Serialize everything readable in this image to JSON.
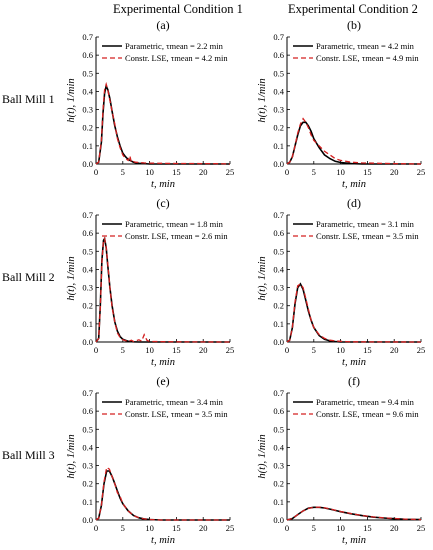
{
  "columns": [
    "Experimental Condition 1",
    "Experimental Condition 2"
  ],
  "rows": [
    "Ball Mill 1",
    "Ball Mill 2",
    "Ball Mill 3"
  ],
  "colors": {
    "parametric": "#000000",
    "lse": "#d32020",
    "axis": "#000000"
  },
  "axes": {
    "xlabel": "t, min",
    "ylabel": "h(t), 1/min",
    "xlim": [
      0,
      25
    ],
    "ylim": [
      0,
      0.7
    ],
    "xticks": [
      0,
      5,
      10,
      15,
      20,
      25
    ],
    "yticks": [
      0.0,
      0.1,
      0.2,
      0.3,
      0.4,
      0.5,
      0.6,
      0.7
    ],
    "grid": false
  },
  "chart_data": [
    {
      "type": "line",
      "panel": "(a)",
      "row": "Ball Mill 1",
      "column": "Experimental Condition 1",
      "legend": "top-right",
      "series": [
        {
          "name": "Parametric, τmean = 2.2 min",
          "style": "solid",
          "x": [
            0,
            0.5,
            1,
            1.3,
            1.6,
            1.9,
            2.2,
            2.6,
            3,
            3.5,
            4,
            4.5,
            5,
            5.5,
            6,
            7,
            8,
            10,
            25
          ],
          "y": [
            0,
            0.01,
            0.12,
            0.28,
            0.39,
            0.43,
            0.41,
            0.36,
            0.29,
            0.21,
            0.15,
            0.1,
            0.06,
            0.04,
            0.025,
            0.01,
            0.004,
            0,
            0
          ]
        },
        {
          "name": "Constr. LSE, τmean = 4.2 min",
          "style": "dashed",
          "x": [
            0,
            0.5,
            1,
            1.3,
            1.6,
            1.9,
            2.2,
            2.6,
            3,
            3.5,
            4,
            4.5,
            5,
            5.5,
            6,
            6.3,
            6.6,
            6.9,
            7.3,
            8,
            9,
            10,
            12,
            15,
            18,
            20,
            22,
            25
          ],
          "y": [
            0,
            0.01,
            0.13,
            0.3,
            0.41,
            0.44,
            0.41,
            0.35,
            0.29,
            0.22,
            0.14,
            0.09,
            0.05,
            0.03,
            0.02,
            0.045,
            0.01,
            0.015,
            0.01,
            0.008,
            0.006,
            0.005,
            0.004,
            0.003,
            0.003,
            0.002,
            0.002,
            0
          ]
        }
      ]
    },
    {
      "type": "line",
      "panel": "(b)",
      "row": "Ball Mill 1",
      "column": "Experimental Condition 2",
      "legend": "top-right",
      "series": [
        {
          "name": "Parametric, τmean = 4.2 min",
          "style": "solid",
          "x": [
            0,
            0.5,
            1,
            1.5,
            2,
            2.5,
            3,
            3.5,
            4,
            4.5,
            5,
            6,
            7,
            8,
            9,
            10,
            12,
            14,
            25
          ],
          "y": [
            0,
            0.01,
            0.04,
            0.1,
            0.16,
            0.21,
            0.23,
            0.23,
            0.21,
            0.18,
            0.14,
            0.09,
            0.05,
            0.03,
            0.015,
            0.008,
            0.002,
            0,
            0
          ]
        },
        {
          "name": "Constr. LSE, τmean = 4.9 min",
          "style": "dashed",
          "x": [
            0,
            0.5,
            1,
            1.5,
            2,
            2.5,
            3,
            3.5,
            4,
            4.5,
            5,
            6,
            7,
            8,
            9,
            10,
            11,
            12,
            14,
            17,
            20,
            25
          ],
          "y": [
            0,
            0.01,
            0.04,
            0.1,
            0.17,
            0.22,
            0.25,
            0.23,
            0.2,
            0.16,
            0.13,
            0.1,
            0.07,
            0.05,
            0.03,
            0.02,
            0.015,
            0.01,
            0.006,
            0.004,
            0.002,
            0
          ]
        }
      ]
    },
    {
      "type": "line",
      "panel": "(c)",
      "row": "Ball Mill 2",
      "column": "Experimental Condition 1",
      "legend": "top-right",
      "series": [
        {
          "name": "Parametric, τmean = 1.8 min",
          "style": "solid",
          "x": [
            0,
            0.5,
            0.8,
            1.1,
            1.4,
            1.6,
            1.9,
            2.2,
            2.6,
            3,
            3.5,
            4,
            4.5,
            5,
            6,
            7,
            8,
            25
          ],
          "y": [
            0,
            0.02,
            0.2,
            0.45,
            0.56,
            0.57,
            0.52,
            0.42,
            0.3,
            0.2,
            0.11,
            0.06,
            0.03,
            0.015,
            0.004,
            0.001,
            0,
            0
          ]
        },
        {
          "name": "Constr. LSE, τmean = 2.6 min",
          "style": "dashed",
          "x": [
            0,
            0.5,
            0.8,
            1.1,
            1.4,
            1.6,
            1.9,
            2.2,
            2.6,
            3,
            3.5,
            4,
            4.5,
            5,
            6,
            6.6,
            7,
            8,
            8.5,
            9,
            9.5,
            10,
            12,
            15,
            25
          ],
          "y": [
            0,
            0.02,
            0.19,
            0.44,
            0.56,
            0.57,
            0.52,
            0.43,
            0.3,
            0.19,
            0.11,
            0.05,
            0.025,
            0.012,
            0.003,
            0.01,
            0.003,
            0.012,
            0.005,
            0.04,
            0.01,
            0.003,
            0.002,
            0.001,
            0
          ]
        }
      ]
    },
    {
      "type": "line",
      "panel": "(d)",
      "row": "Ball Mill 2",
      "column": "Experimental Condition 2",
      "legend": "top-right",
      "series": [
        {
          "name": "Parametric, τmean = 3.1 min",
          "style": "solid",
          "x": [
            0,
            0.5,
            1,
            1.5,
            2,
            2.5,
            3,
            3.5,
            4,
            4.5,
            5,
            6,
            7,
            8,
            9,
            10,
            25
          ],
          "y": [
            0,
            0.01,
            0.08,
            0.21,
            0.3,
            0.32,
            0.29,
            0.23,
            0.17,
            0.12,
            0.08,
            0.035,
            0.015,
            0.006,
            0.002,
            0,
            0
          ]
        },
        {
          "name": "Constr. LSE, τmean = 3.5 min",
          "style": "dashed",
          "x": [
            0,
            0.5,
            1,
            1.5,
            2,
            2.5,
            3,
            3.5,
            4,
            4.5,
            5,
            6,
            7,
            8,
            9,
            10,
            11,
            12,
            25
          ],
          "y": [
            0,
            0.01,
            0.08,
            0.22,
            0.31,
            0.32,
            0.3,
            0.24,
            0.18,
            0.12,
            0.08,
            0.04,
            0.02,
            0.01,
            0.006,
            0.004,
            0.002,
            0.001,
            0
          ]
        }
      ]
    },
    {
      "type": "line",
      "panel": "(e)",
      "row": "Ball Mill 3",
      "column": "Experimental Condition 1",
      "legend": "top-right",
      "series": [
        {
          "name": "Parametric, τmean = 3.4 min",
          "style": "solid",
          "x": [
            0,
            0.5,
            1,
            1.5,
            2,
            2.5,
            3,
            3.5,
            4,
            4.5,
            5,
            6,
            7,
            8,
            9,
            10,
            12,
            25
          ],
          "y": [
            0,
            0.01,
            0.08,
            0.2,
            0.27,
            0.27,
            0.24,
            0.2,
            0.16,
            0.12,
            0.09,
            0.05,
            0.025,
            0.012,
            0.006,
            0.003,
            0,
            0
          ]
        },
        {
          "name": "Constr. LSE, τmean = 3.5 min",
          "style": "dashed",
          "x": [
            0,
            0.5,
            1,
            1.5,
            2,
            2.5,
            3,
            3.5,
            4,
            4.5,
            5,
            6,
            7,
            8,
            9,
            10,
            11,
            12,
            25
          ],
          "y": [
            0,
            0.01,
            0.08,
            0.21,
            0.29,
            0.28,
            0.24,
            0.2,
            0.15,
            0.13,
            0.09,
            0.05,
            0.025,
            0.012,
            0.006,
            0.003,
            0.001,
            0,
            0
          ]
        }
      ]
    },
    {
      "type": "line",
      "panel": "(f)",
      "row": "Ball Mill 3",
      "column": "Experimental Condition 2",
      "legend": "top-right",
      "series": [
        {
          "name": "Parametric, τmean = 9.4 min",
          "style": "solid",
          "x": [
            0,
            1,
            2,
            3,
            4,
            5,
            6,
            7,
            8,
            9,
            10,
            12,
            14,
            16,
            18,
            20,
            22,
            25
          ],
          "y": [
            0,
            0.008,
            0.03,
            0.05,
            0.065,
            0.07,
            0.07,
            0.066,
            0.06,
            0.053,
            0.046,
            0.034,
            0.024,
            0.016,
            0.011,
            0.007,
            0.004,
            0.002
          ]
        },
        {
          "name": "Constr. LSE, τmean = 9.6 min",
          "style": "dashed",
          "x": [
            0,
            1,
            2,
            3,
            4,
            5,
            6,
            7,
            8,
            9,
            10,
            12,
            14,
            16,
            18,
            20,
            22,
            25
          ],
          "y": [
            0,
            0.008,
            0.03,
            0.05,
            0.064,
            0.07,
            0.071,
            0.067,
            0.061,
            0.054,
            0.047,
            0.035,
            0.025,
            0.017,
            0.012,
            0.008,
            0.005,
            0.002
          ]
        }
      ]
    }
  ]
}
